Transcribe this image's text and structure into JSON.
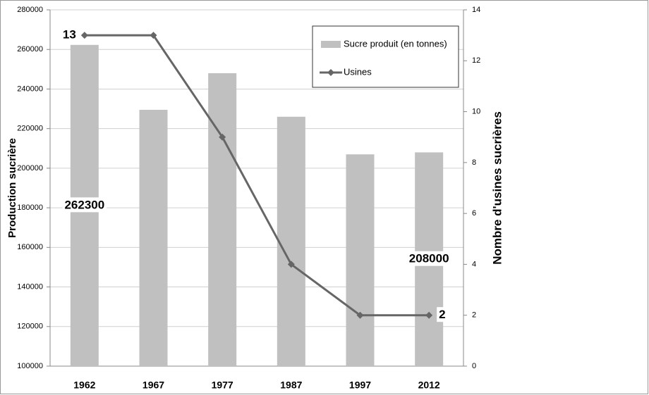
{
  "chart_data": {
    "type": "bar",
    "categories": [
      "1962",
      "1967",
      "1977",
      "1987",
      "1997",
      "2012"
    ],
    "y_label": "Production sucrière",
    "y2_label": "Nombre d'usines sucrières",
    "series": [
      {
        "name": "Sucre produit (en tonnes)",
        "type": "bar",
        "color": "#c0c0c0",
        "values": [
          262300,
          229500,
          248000,
          226000,
          207000,
          208000
        ],
        "labeled": [
          0,
          5
        ]
      },
      {
        "name": "Usines",
        "type": "line",
        "axis": "y2",
        "color": "#666666",
        "values": [
          13,
          13,
          9,
          4,
          2,
          2
        ],
        "labeled": [
          0,
          5
        ]
      }
    ],
    "ylim": [
      100000,
      280000
    ],
    "yticks": [
      100000,
      120000,
      140000,
      160000,
      180000,
      200000,
      220000,
      240000,
      260000,
      280000
    ],
    "y2lim": [
      0,
      14
    ],
    "y2ticks": [
      0,
      2,
      4,
      6,
      8,
      10,
      12,
      14
    ],
    "grid": true,
    "legend": "top-right"
  }
}
